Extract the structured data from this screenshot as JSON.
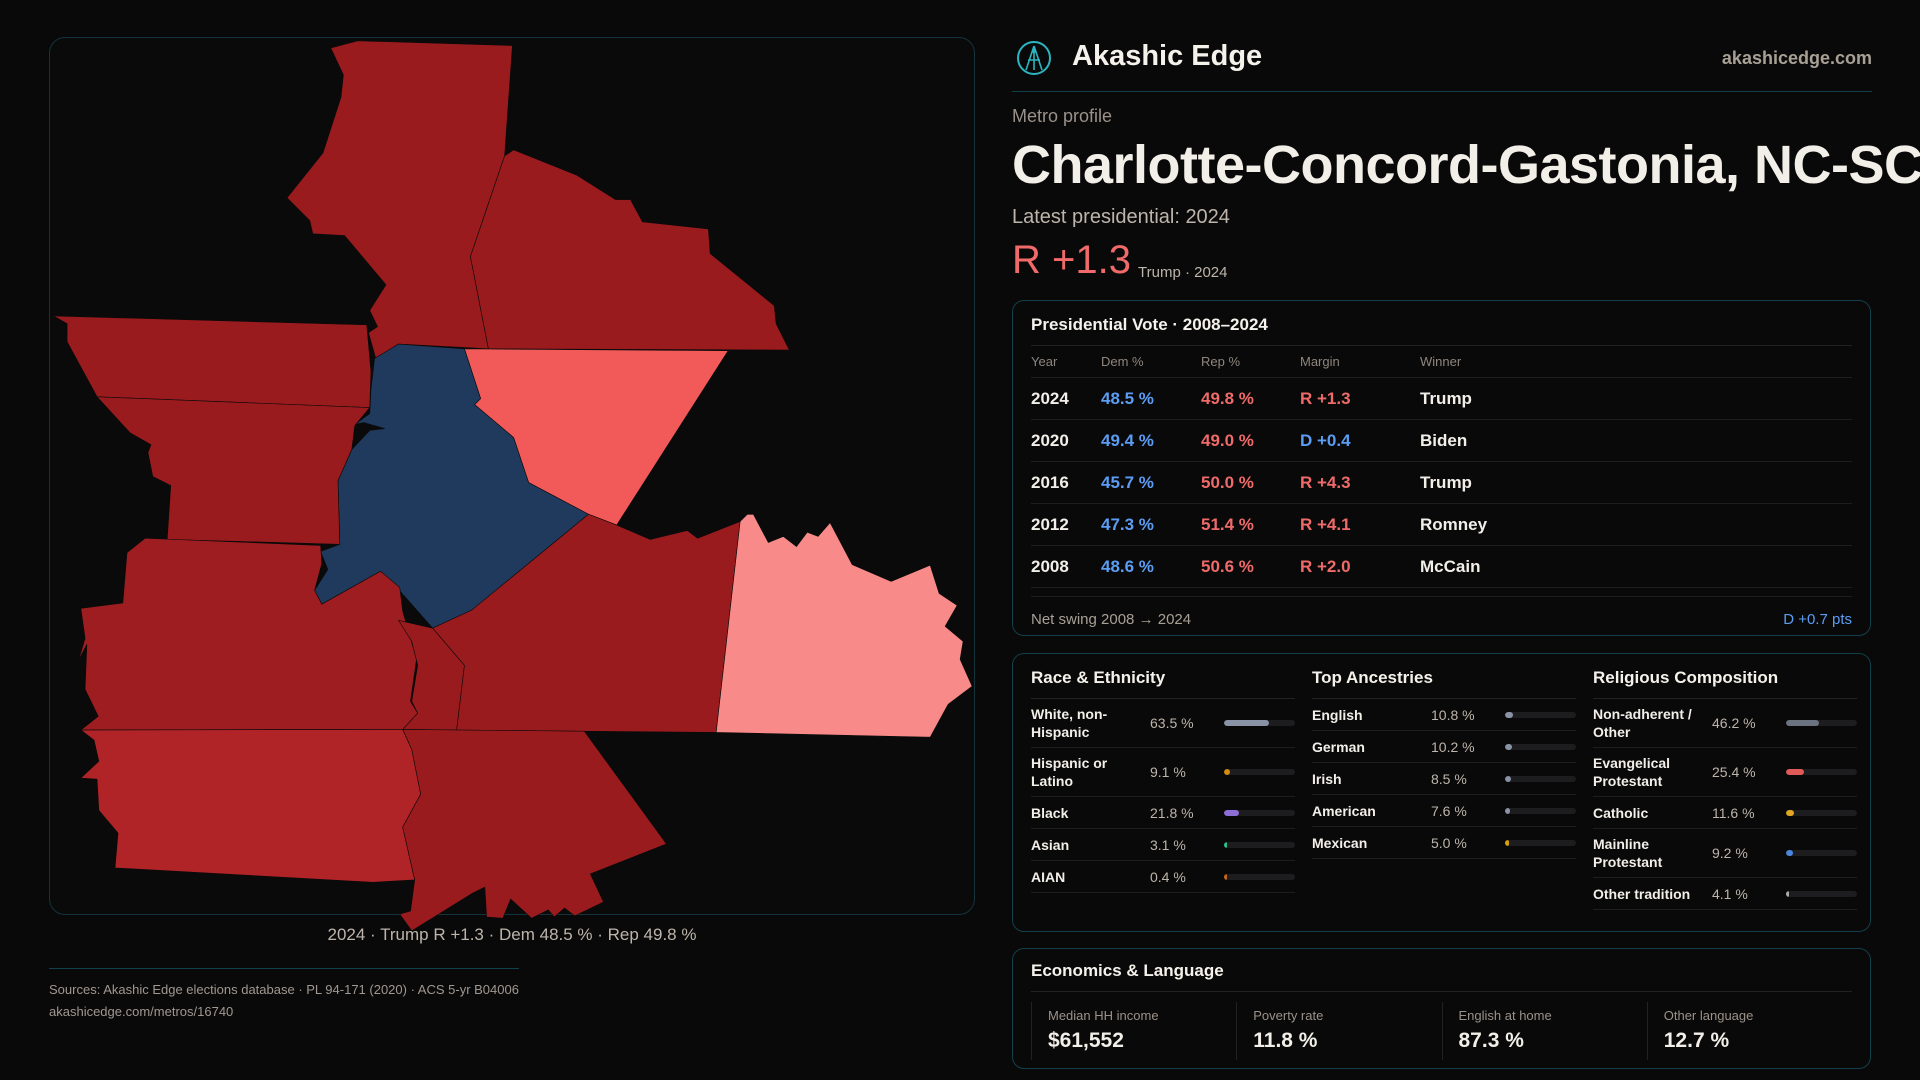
{
  "header": {
    "brand": "Akashic Edge",
    "site": "akashicedge.com"
  },
  "profile": {
    "kicker": "Metro profile",
    "title": "Charlotte-Concord-Gastonia, NC-SC",
    "latest": "Latest presidential: 2024",
    "margin": "R +1.3",
    "margin_sub": "Trump · 2024"
  },
  "map": {
    "caption": "2024 · Trump R +1.3 · Dem 48.5 % · Rep 49.8 %",
    "county_fills": [
      "#9a1b1e",
      "#9a1b1e",
      "#f25a5a",
      "#1f3a5c",
      "#9a1b1e",
      "#9a1b1e",
      "#9e1d20",
      "#9a1b1e",
      "#9a1b1e",
      "#f88a8a",
      "#b02428",
      "#9a1b1e"
    ]
  },
  "vote": {
    "title": "Presidential Vote · 2008–2024",
    "headers": [
      "Year",
      "Dem %",
      "Rep %",
      "Margin",
      "Winner"
    ],
    "rows": [
      {
        "year": "2024",
        "dem": "48.5 %",
        "rep": "49.8 %",
        "margin": "R +1.3",
        "party": "rep",
        "winner": "Trump"
      },
      {
        "year": "2020",
        "dem": "49.4 %",
        "rep": "49.0 %",
        "margin": "D +0.4",
        "party": "dem",
        "winner": "Biden"
      },
      {
        "year": "2016",
        "dem": "45.7 %",
        "rep": "50.0 %",
        "margin": "R +4.3",
        "party": "rep",
        "winner": "Trump"
      },
      {
        "year": "2012",
        "dem": "47.3 %",
        "rep": "51.4 %",
        "margin": "R +4.1",
        "party": "rep",
        "winner": "Romney"
      },
      {
        "year": "2008",
        "dem": "48.6 %",
        "rep": "50.6 %",
        "margin": "R +2.0",
        "party": "rep",
        "winner": "McCain"
      }
    ],
    "swing_label": "Net swing 2008 → 2024",
    "swing_value": "D +0.7 pts"
  },
  "demographics": [
    {
      "title": "Race & Ethnicity",
      "rows": [
        {
          "label": "White, non-Hispanic",
          "value": "63.5 %",
          "pct": 63.5,
          "color": "#8a93a6"
        },
        {
          "label": "Hispanic or Latino",
          "value": "9.1 %",
          "pct": 9.1,
          "color": "#d68a10"
        },
        {
          "label": "Black",
          "value": "21.8 %",
          "pct": 21.8,
          "color": "#8b6fd6"
        },
        {
          "label": "Asian",
          "value": "3.1 %",
          "pct": 3.1,
          "color": "#2bbf8a"
        },
        {
          "label": "AIAN",
          "value": "0.4 %",
          "pct": 0.4,
          "color": "#c8651b"
        }
      ]
    },
    {
      "title": "Top Ancestries",
      "rows": [
        {
          "label": "English",
          "value": "10.8 %",
          "pct": 10.8,
          "color": "#8a93a6"
        },
        {
          "label": "German",
          "value": "10.2 %",
          "pct": 10.2,
          "color": "#8a93a6"
        },
        {
          "label": "Irish",
          "value": "8.5 %",
          "pct": 8.5,
          "color": "#8a93a6"
        },
        {
          "label": "American",
          "value": "7.6 %",
          "pct": 7.6,
          "color": "#8a93a6"
        },
        {
          "label": "Mexican",
          "value": "5.0 %",
          "pct": 5.0,
          "color": "#d6a010"
        }
      ]
    },
    {
      "title": "Religious Composition",
      "rows": [
        {
          "label": "Non-adherent / Other",
          "value": "46.2 %",
          "pct": 46.2,
          "color": "#6b7280"
        },
        {
          "label": "Evangelical Protestant",
          "value": "25.4 %",
          "pct": 25.4,
          "color": "#e05a5a"
        },
        {
          "label": "Catholic",
          "value": "11.6 %",
          "pct": 11.6,
          "color": "#e0a820"
        },
        {
          "label": "Mainline Protestant",
          "value": "9.2 %",
          "pct": 9.2,
          "color": "#4a86e0"
        },
        {
          "label": "Other tradition",
          "value": "4.1 %",
          "pct": 4.1,
          "color": "#aaaaaa"
        }
      ]
    }
  ],
  "economics": {
    "title": "Economics & Language",
    "items": [
      {
        "label": "Median HH income",
        "value": "$61,552"
      },
      {
        "label": "Poverty rate",
        "value": "11.8 %"
      },
      {
        "label": "English at home",
        "value": "87.3 %"
      },
      {
        "label": "Other language",
        "value": "12.7 %"
      }
    ]
  },
  "sources": {
    "line1": "Sources: Akashic Edge elections database · PL 94-171 (2020) · ACS 5-yr B04006",
    "line2": "akashicedge.com/metros/16740"
  }
}
